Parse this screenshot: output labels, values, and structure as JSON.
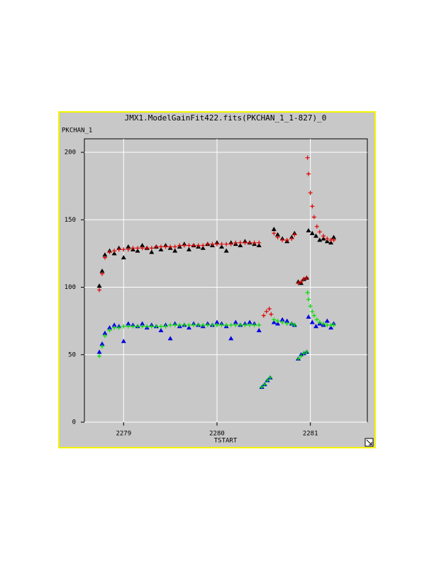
{
  "chart_data": {
    "type": "scatter",
    "title": "JMX1.ModelGainFit422.fits(PKCHAN_1_1-827)_0",
    "y_label": "PKCHAN_1",
    "x_label": "TSTART",
    "xlim": [
      2278.58,
      2281.61
    ],
    "ylim": [
      0,
      210
    ],
    "xticks": [
      2279,
      2280,
      2281
    ],
    "yticks": [
      0,
      50,
      100,
      150,
      200
    ],
    "grid": true,
    "series": [
      {
        "color": "#000000",
        "marker": "triangle",
        "x": [
          2278.74,
          2278.77,
          2278.8,
          2278.85,
          2278.9,
          2278.95,
          2279,
          2279.05,
          2279.1,
          2279.15,
          2279.2,
          2279.25,
          2279.3,
          2279.35,
          2279.4,
          2279.45,
          2279.5,
          2279.55,
          2279.6,
          2279.65,
          2279.7,
          2279.75,
          2279.8,
          2279.85,
          2279.9,
          2279.95,
          2280,
          2280.05,
          2280.1,
          2280.15,
          2280.2,
          2280.25,
          2280.3,
          2280.35,
          2280.4,
          2280.45,
          2280.61,
          2280.65,
          2280.7,
          2280.75,
          2280.8,
          2280.83,
          2280.87,
          2280.9,
          2280.93,
          2280.96,
          2280.98,
          2281.02,
          2281.06,
          2281.1,
          2281.14,
          2281.18,
          2281.22,
          2281.25
        ],
        "values": [
          101,
          112,
          124,
          127,
          125,
          129,
          122,
          130,
          128,
          127,
          131,
          129,
          126,
          130,
          128,
          131,
          129,
          127,
          130,
          132,
          128,
          131,
          130,
          129,
          132,
          131,
          133,
          130,
          127,
          133,
          132,
          131,
          134,
          133,
          132,
          131,
          143,
          139,
          136,
          134,
          137,
          140,
          104,
          103,
          106,
          107,
          142,
          140,
          138,
          135,
          136,
          134,
          133,
          137
        ]
      },
      {
        "color": "#e00000",
        "marker": "plus",
        "x": [
          2278.74,
          2278.77,
          2278.8,
          2278.85,
          2278.9,
          2278.95,
          2279,
          2279.05,
          2279.1,
          2279.15,
          2279.2,
          2279.25,
          2279.3,
          2279.35,
          2279.4,
          2279.45,
          2279.5,
          2279.55,
          2279.6,
          2279.65,
          2279.7,
          2279.75,
          2279.8,
          2279.85,
          2279.9,
          2279.95,
          2280,
          2280.05,
          2280.1,
          2280.15,
          2280.2,
          2280.25,
          2280.3,
          2280.35,
          2280.4,
          2280.45,
          2280.5,
          2280.53,
          2280.56,
          2280.58,
          2280.61,
          2280.65,
          2280.7,
          2280.75,
          2280.8,
          2280.83,
          2280.87,
          2280.9,
          2280.93,
          2280.96,
          2280.97,
          2280.98,
          2281,
          2281.02,
          2281.04,
          2281.07,
          2281.1,
          2281.14,
          2281.18,
          2281.22,
          2281.25
        ],
        "values": [
          98,
          110,
          122,
          126,
          127,
          128,
          128,
          128,
          129,
          129,
          129,
          129,
          129,
          130,
          130,
          130,
          130,
          130,
          131,
          131,
          131,
          131,
          131,
          131,
          132,
          132,
          132,
          132,
          132,
          132,
          133,
          133,
          133,
          133,
          133,
          133,
          79,
          82,
          84,
          80,
          140,
          137,
          135,
          135,
          136,
          139,
          103,
          104,
          106,
          107,
          196,
          184,
          170,
          160,
          152,
          145,
          141,
          138,
          136,
          135,
          135
        ]
      },
      {
        "color": "#0000e0",
        "marker": "triangle",
        "x": [
          2278.74,
          2278.77,
          2278.8,
          2278.85,
          2278.9,
          2278.95,
          2279,
          2279.05,
          2279.1,
          2279.15,
          2279.2,
          2279.25,
          2279.3,
          2279.35,
          2279.4,
          2279.45,
          2279.5,
          2279.55,
          2279.6,
          2279.65,
          2279.7,
          2279.75,
          2279.8,
          2279.85,
          2279.9,
          2279.95,
          2280,
          2280.05,
          2280.1,
          2280.15,
          2280.2,
          2280.25,
          2280.3,
          2280.35,
          2280.4,
          2280.45,
          2280.48,
          2280.51,
          2280.54,
          2280.57,
          2280.61,
          2280.65,
          2280.7,
          2280.75,
          2280.8,
          2280.83,
          2280.87,
          2280.9,
          2280.93,
          2280.96,
          2280.98,
          2281.02,
          2281.06,
          2281.1,
          2281.14,
          2281.18,
          2281.22,
          2281.25
        ],
        "values": [
          52,
          58,
          66,
          70,
          72,
          71,
          60,
          73,
          72,
          71,
          73,
          70,
          72,
          71,
          68,
          72,
          62,
          73,
          71,
          72,
          70,
          73,
          72,
          71,
          73,
          72,
          74,
          73,
          71,
          62,
          74,
          72,
          73,
          74,
          73,
          68,
          26,
          28,
          31,
          33,
          74,
          73,
          76,
          75,
          73,
          72,
          47,
          50,
          51,
          52,
          78,
          74,
          71,
          73,
          72,
          75,
          70,
          73
        ]
      },
      {
        "color": "#00e000",
        "marker": "plus",
        "x": [
          2278.74,
          2278.77,
          2278.8,
          2278.85,
          2278.9,
          2278.95,
          2279,
          2279.05,
          2279.1,
          2279.15,
          2279.2,
          2279.25,
          2279.3,
          2279.35,
          2279.4,
          2279.45,
          2279.5,
          2279.55,
          2279.6,
          2279.65,
          2279.7,
          2279.75,
          2279.8,
          2279.85,
          2279.9,
          2279.95,
          2280,
          2280.05,
          2280.1,
          2280.15,
          2280.2,
          2280.25,
          2280.3,
          2280.35,
          2280.4,
          2280.45,
          2280.48,
          2280.51,
          2280.54,
          2280.57,
          2280.61,
          2280.65,
          2280.7,
          2280.75,
          2280.8,
          2280.83,
          2280.87,
          2280.9,
          2280.93,
          2280.96,
          2280.97,
          2280.98,
          2281,
          2281.02,
          2281.04,
          2281.07,
          2281.1,
          2281.14,
          2281.18,
          2281.22,
          2281.25
        ],
        "values": [
          49,
          56,
          64,
          68,
          70,
          70,
          71,
          71,
          71,
          71,
          71,
          71,
          71,
          71,
          71,
          71,
          72,
          72,
          72,
          72,
          72,
          72,
          72,
          72,
          72,
          72,
          72,
          72,
          72,
          72,
          72,
          72,
          72,
          72,
          72,
          72,
          26,
          28,
          31,
          33,
          76,
          75,
          74,
          73,
          73,
          72,
          47,
          49,
          51,
          52,
          96,
          91,
          86,
          82,
          79,
          76,
          74,
          73,
          72,
          72,
          72
        ]
      }
    ]
  }
}
